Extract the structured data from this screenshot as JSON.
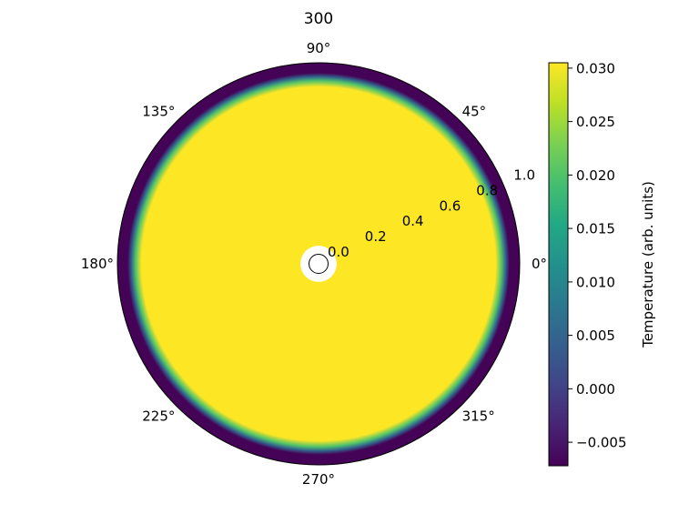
{
  "chart_data": {
    "type": "heatmap",
    "title": "300",
    "projection": "polar",
    "angle_ticks": [
      "0°",
      "45°",
      "90°",
      "135°",
      "180°",
      "225°",
      "270°",
      "315°"
    ],
    "angle_tick_degrees": [
      0,
      45,
      90,
      135,
      180,
      225,
      270,
      315
    ],
    "radial_ticks": [
      "0.0",
      "0.2",
      "0.4",
      "0.6",
      "0.8",
      "1.0"
    ],
    "radial_tick_values": [
      0.0,
      0.2,
      0.4,
      0.6,
      0.8,
      1.0
    ],
    "rlim": [
      0,
      1.0
    ],
    "radial_label_angle_deg": 22.5,
    "grid": false,
    "field": {
      "description_values": "temperature vs radius (angularly uniform)",
      "r": [
        0.0,
        0.09,
        0.88,
        0.91,
        0.93,
        0.95,
        1.0
      ],
      "value": [
        0.0305,
        0.0305,
        0.0305,
        0.02,
        0.005,
        -0.007,
        -0.007
      ]
    },
    "inner_mask_radius": 0.09,
    "colorbar": {
      "label": "Temperature (arb. units)",
      "colormap": "viridis",
      "vmin": -0.0072,
      "vmax": 0.0305,
      "ticks": [
        "−0.005",
        "0.000",
        "0.005",
        "0.010",
        "0.015",
        "0.020",
        "0.025",
        "0.030"
      ],
      "tick_values": [
        -0.005,
        0.0,
        0.005,
        0.01,
        0.015,
        0.02,
        0.025,
        0.03
      ]
    },
    "colors": {
      "viridis_low": "#440154",
      "viridis_mid": "#21918c",
      "viridis_high": "#fde725"
    }
  }
}
